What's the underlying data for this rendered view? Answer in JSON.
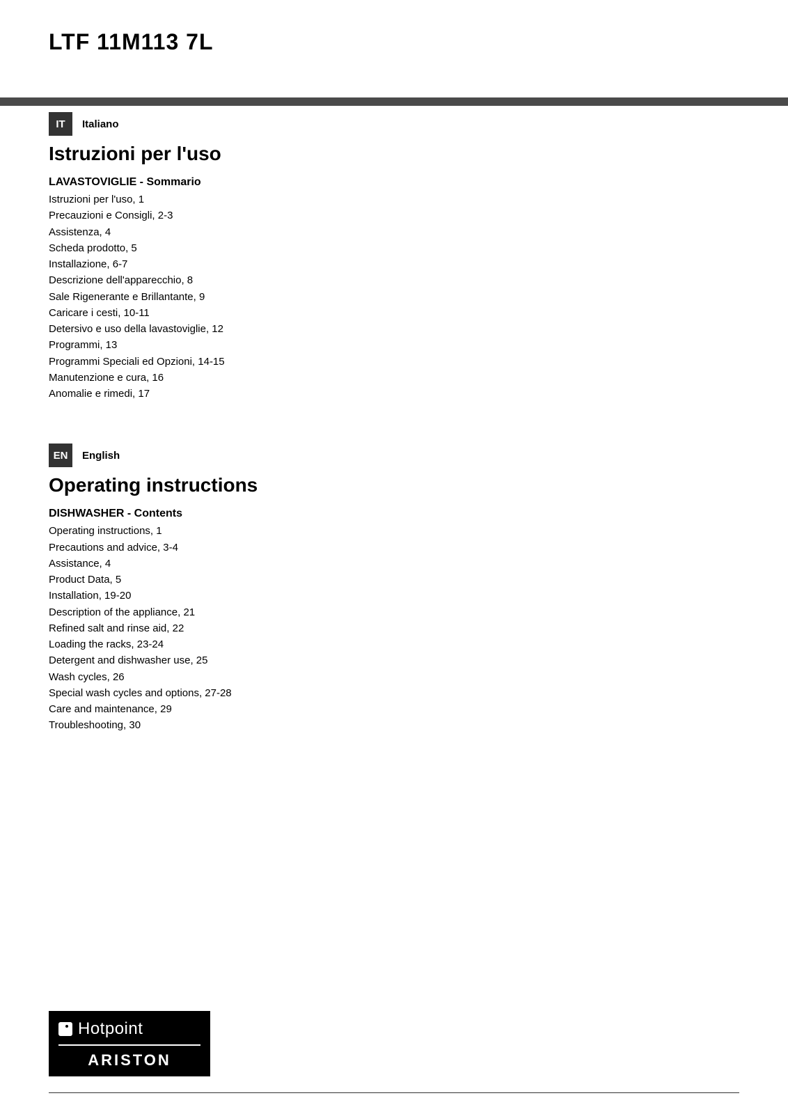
{
  "model": "LTF  11M113 7L",
  "header_bar_color": "#4a4a4a",
  "text_color": "#000000",
  "background_color": "#ffffff",
  "languages": [
    {
      "code": "IT",
      "name": "Italiano",
      "title": "Istruzioni per l'uso",
      "subtitle": "LAVASTOVIGLIE - Sommario",
      "items": [
        "Istruzioni per l'uso,  1",
        "Precauzioni e Consigli, 2-3",
        "Assistenza, 4",
        "Scheda prodotto, 5",
        "Installazione, 6-7",
        "Descrizione dell'apparecchio, 8",
        "Sale Rigenerante e Brillantante, 9",
        "Caricare i cesti, 10-11",
        "Detersivo e uso della lavastoviglie, 12",
        "Programmi, 13",
        "Programmi Speciali ed Opzioni, 14-15",
        "Manutenzione e cura, 16",
        "Anomalie e rimedi, 17"
      ]
    },
    {
      "code": "EN",
      "name": "English",
      "title": "Operating instructions",
      "subtitle": "DISHWASHER - Contents",
      "items": [
        "Operating instructions, 1",
        "Precautions and advice, 3-4",
        "Assistance, 4",
        "Product Data, 5",
        "Installation, 19-20",
        "Description of the appliance, 21",
        "Refined salt and rinse aid, 22",
        "Loading the racks, 23-24",
        "Detergent and dishwasher use, 25",
        "Wash cycles, 26",
        "Special wash cycles and options, 27-28",
        "Care and maintenance, 29",
        "Troubleshooting, 30"
      ]
    }
  ],
  "brand": {
    "name": "Hotpoint",
    "sub": "ARISTON",
    "bg_color": "#000000",
    "fg_color": "#ffffff"
  }
}
